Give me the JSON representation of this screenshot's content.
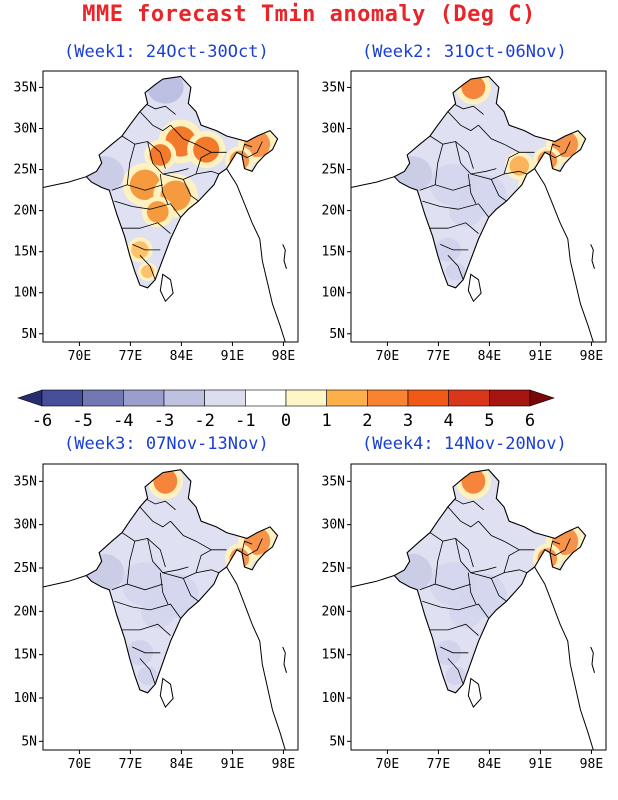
{
  "title": "MME forecast Tmin anomaly (Deg C)",
  "panels": [
    {
      "label": "(Week1: 24Oct-30Oct)",
      "warm_regions": [
        "north",
        "central",
        "northeast",
        "south"
      ],
      "cool_regions": [
        "west",
        "kashmir"
      ]
    },
    {
      "label": "(Week2: 31Oct-06Nov)",
      "warm_regions": [
        "kashmir",
        "northeast",
        "east"
      ],
      "cool_regions": [
        "west",
        "central",
        "south"
      ]
    },
    {
      "label": "(Week3: 07Nov-13Nov)",
      "warm_regions": [
        "kashmir",
        "northeast"
      ],
      "cool_regions": [
        "west",
        "central",
        "south"
      ]
    },
    {
      "label": "(Week4: 14Nov-20Nov)",
      "warm_regions": [
        "kashmir",
        "northeast"
      ],
      "cool_regions": [
        "west",
        "central",
        "south"
      ]
    }
  ],
  "lat_labels": [
    "35N",
    "30N",
    "25N",
    "20N",
    "15N",
    "10N",
    "5N"
  ],
  "lon_labels": [
    "70E",
    "77E",
    "84E",
    "91E",
    "98E"
  ],
  "colorbar": {
    "ticks": [
      "-6",
      "-5",
      "-4",
      "-3",
      "-2",
      "-1",
      "0",
      "1",
      "2",
      "3",
      "4",
      "5",
      "6"
    ],
    "colors": [
      "#252d6e",
      "#474e9a",
      "#7378b4",
      "#9a9ecb",
      "#bec1e0",
      "#dcdef0",
      "#ffffff",
      "#fff6c8",
      "#fdb04a",
      "#f98330",
      "#f15a16",
      "#d9361a",
      "#a61510",
      "#7a0707"
    ]
  }
}
